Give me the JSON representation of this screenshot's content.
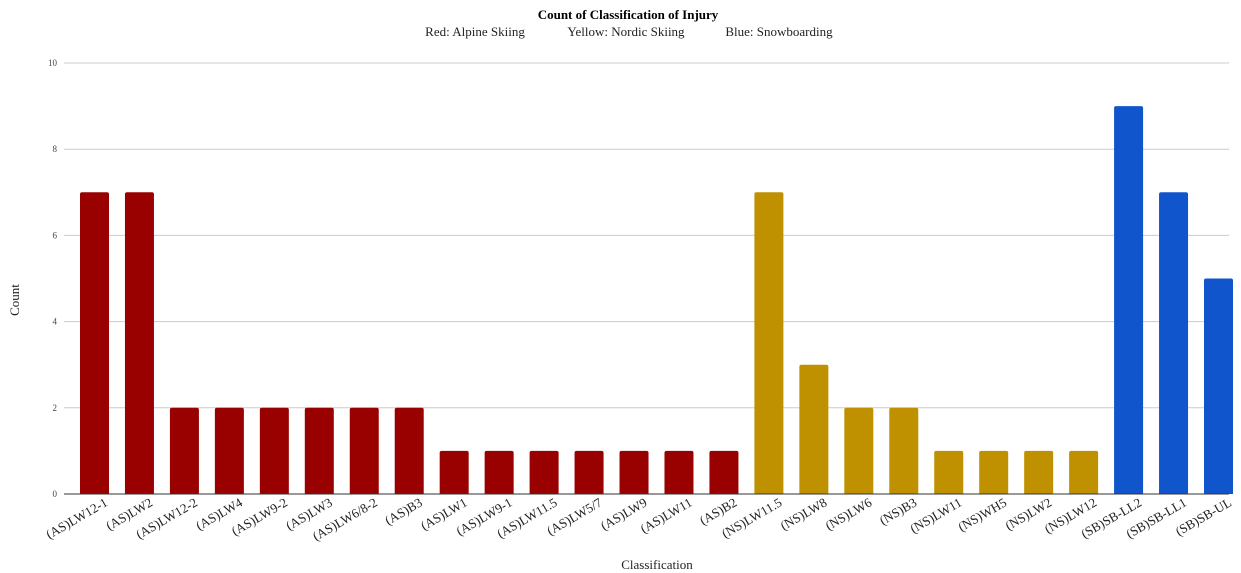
{
  "chart_data": {
    "type": "bar",
    "title": "Count of Classification of Injury",
    "legend": [
      {
        "label": "Red: Alpine Skiing",
        "color": "#990000"
      },
      {
        "label": "Yellow: Nordic Skiing",
        "color": "#bf9000"
      },
      {
        "label": "Blue: Snowboarding",
        "color": "#1155cc"
      }
    ],
    "xlabel": "Classification",
    "ylabel": "Count",
    "ylim": [
      0,
      10
    ],
    "yticks": [
      0,
      2,
      4,
      6,
      8,
      10
    ],
    "grid": true,
    "categories": [
      "(AS)LW12-1",
      "(AS)LW2",
      "(AS)LW12-2",
      "(AS)LW4",
      "(AS)LW9-2",
      "(AS)LW3",
      "(AS)LW6/8-2",
      "(AS)B3",
      "(AS)LW1",
      "(AS)LW9-1",
      "(AS)LW11.5",
      "(AS)LW5/7",
      "(AS)LW9",
      "(AS)LW11",
      "(AS)B2",
      "(NS)LW11.5",
      "(NS)LW8",
      "(NS)LW6",
      "(NS)B3",
      "(NS)LW11",
      "(NS)WH5",
      "(NS)LW2",
      "(NS)LW12",
      "(SB)SB-LL2",
      "(SB)SB-LL1",
      "(SB)SB-UL"
    ],
    "values": [
      7,
      7,
      2,
      2,
      2,
      2,
      2,
      2,
      1,
      1,
      1,
      1,
      1,
      1,
      1,
      7,
      3,
      2,
      2,
      1,
      1,
      1,
      1,
      9,
      7,
      5
    ],
    "colors": [
      "#990000",
      "#990000",
      "#990000",
      "#990000",
      "#990000",
      "#990000",
      "#990000",
      "#990000",
      "#990000",
      "#990000",
      "#990000",
      "#990000",
      "#990000",
      "#990000",
      "#990000",
      "#bf9000",
      "#bf9000",
      "#bf9000",
      "#bf9000",
      "#bf9000",
      "#bf9000",
      "#bf9000",
      "#bf9000",
      "#1155cc",
      "#1155cc",
      "#1155cc"
    ]
  }
}
